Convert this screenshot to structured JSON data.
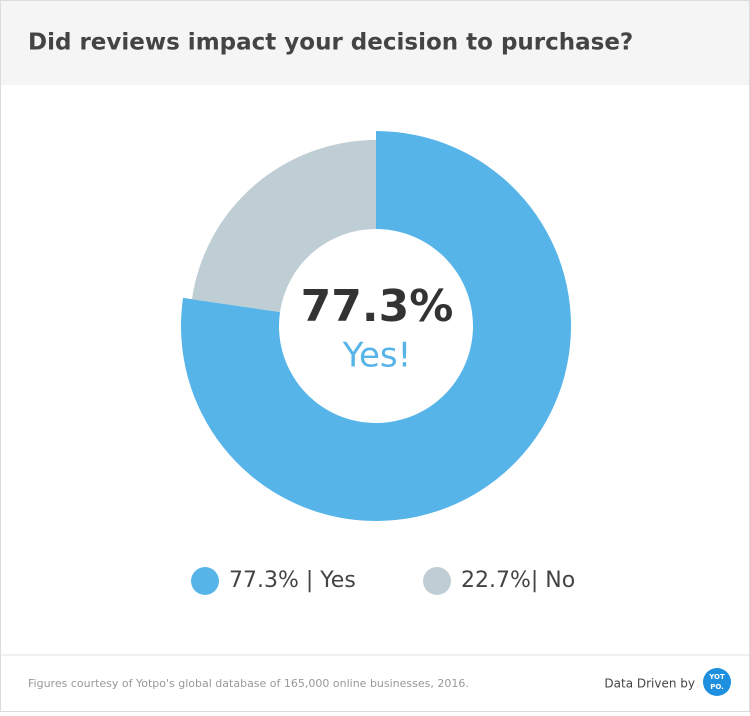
{
  "chart_data": {
    "type": "pie",
    "title": "Did reviews impact your decision to purchase?",
    "categories": [
      "77.3% | Yes",
      "22.7%| No"
    ],
    "values": [
      77.3,
      22.7
    ],
    "value_labels": [
      "77.3%",
      "22.7%"
    ],
    "colors": [
      "#56b4e9",
      "#bfcdd4"
    ],
    "center_text": "Yes!"
  },
  "footer": {
    "source": "Figures courtesy of Yotpo's global database of 165,000 online businesses, 2016.",
    "credit": "Data Driven by",
    "logo": [
      "YOT",
      "PO."
    ]
  }
}
